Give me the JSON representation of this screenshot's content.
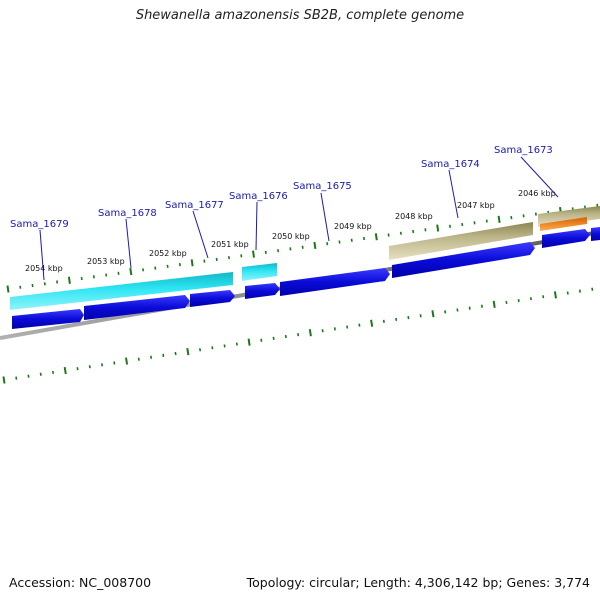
{
  "header": {
    "title": "Shewanella amazonensis SB2B, complete genome"
  },
  "footer": {
    "accession": "Accession: NC_008700",
    "summary": "Topology: circular; Length: 4,306,142 bp; Genes: 3,774"
  },
  "map": {
    "gene_labels": [
      "Sama_1679",
      "Sama_1678",
      "Sama_1677",
      "Sama_1676",
      "Sama_1675",
      "Sama_1674",
      "Sama_1673"
    ],
    "kbp_labels": [
      "2054 kbp",
      "2053 kbp",
      "2052 kbp",
      "2051 kbp",
      "2050 kbp",
      "2049 kbp",
      "2048 kbp",
      "2047 kbp",
      "2046 kbp"
    ],
    "colors": {
      "cds_forward_blue": "#1010e0",
      "rna_cyan": "#20d8e8",
      "pseudogene_khaki": "#c8c090",
      "misc_orange": "#ff8a10",
      "tick_green": "#1a7a1a",
      "backbone_gray": "#808080",
      "label_blue": "#1a1ab0"
    }
  }
}
